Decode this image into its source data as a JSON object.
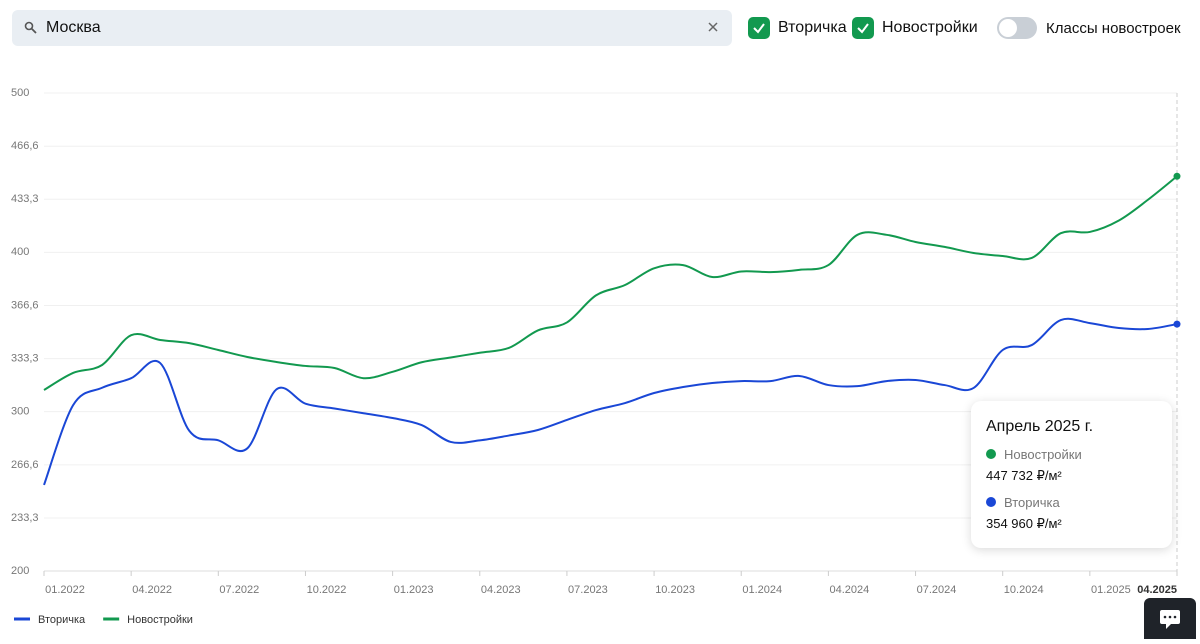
{
  "search": {
    "value": "Москва"
  },
  "filters": [
    {
      "label": "Вторичка",
      "checked": true
    },
    {
      "label": "Новостройки",
      "checked": true
    }
  ],
  "toggle": {
    "label": "Классы новостроек",
    "on": false
  },
  "chart_data": {
    "type": "line",
    "categories": [
      "01.2022",
      null,
      null,
      "04.2022",
      null,
      null,
      "07.2022",
      null,
      null,
      "10.2022",
      null,
      null,
      "01.2023",
      null,
      null,
      "04.2023",
      null,
      null,
      "07.2023",
      null,
      null,
      "10.2023",
      null,
      null,
      "01.2024",
      null,
      null,
      "04.2024",
      null,
      null,
      "07.2024",
      null,
      null,
      "10.2024",
      null,
      null,
      "01.2025",
      null,
      null,
      "04.2025"
    ],
    "series": [
      {
        "name": "Вторичка",
        "color": "#1a47d6",
        "values": [
          254,
          304,
          315,
          321,
          330.5,
          288,
          282,
          277,
          314,
          305,
          302,
          299,
          296,
          291.6,
          281,
          282,
          285,
          288.5,
          294.8,
          301,
          305.4,
          311.7,
          315.5,
          318,
          319.2,
          319.2,
          322.4,
          316.7,
          316,
          319.2,
          319.9,
          316.7,
          314.9,
          338.7,
          341.8,
          357.5,
          355.6,
          352.5,
          351.9,
          354.96
        ]
      },
      {
        "name": "Новостройки",
        "color": "#12994f",
        "values": [
          313.6,
          324.3,
          329.3,
          348,
          345,
          343,
          338.7,
          334.3,
          331.2,
          328.7,
          327.4,
          321,
          325,
          331,
          334,
          337,
          340,
          351,
          356,
          373,
          379.5,
          390,
          392,
          384.5,
          388,
          387.6,
          389,
          392,
          411,
          411,
          406.5,
          403.4,
          399.6,
          397.7,
          396.5,
          412,
          412.8,
          420,
          433,
          447.732
        ]
      }
    ],
    "ylim": [
      200,
      500
    ],
    "yticks": [
      200,
      {
        "value": 233.3,
        "label": "233,3"
      },
      {
        "value": 266.6,
        "label": "266,6"
      },
      300,
      {
        "value": 333.3,
        "label": "333,3"
      },
      {
        "value": 366.6,
        "label": "366,6"
      },
      400,
      {
        "value": 433.3,
        "label": "433,3"
      },
      {
        "value": 466.6,
        "label": "466,6"
      },
      500
    ],
    "grid": true,
    "tooltip": {
      "title": "Апрель 2025 г.",
      "items": [
        {
          "name": "Новостройки",
          "value_label": "447 732 ₽/м²"
        },
        {
          "name": "Вторичка",
          "value_label": "354 960 ₽/м²"
        }
      ]
    }
  }
}
